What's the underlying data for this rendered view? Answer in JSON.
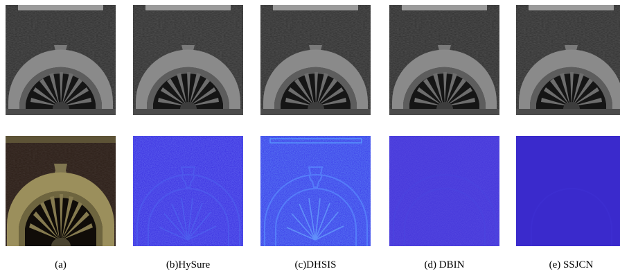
{
  "captions": [
    "(a)",
    "(b)HySure",
    "(c)DHSIS",
    "(d) DBIN",
    "(e) SSJCN"
  ],
  "colors": {
    "gray_wall": "#2e2e2e",
    "gray_arch": "#8c8c8c",
    "rgb_wall": "#2b1d16",
    "rgb_arch": "#9b8f5c",
    "error_hysure": "#3a2fe0",
    "error_dhsis": "#3a3ae8",
    "error_dbin": "#3d2dd8",
    "error_ssjcn": "#3a2acc"
  }
}
